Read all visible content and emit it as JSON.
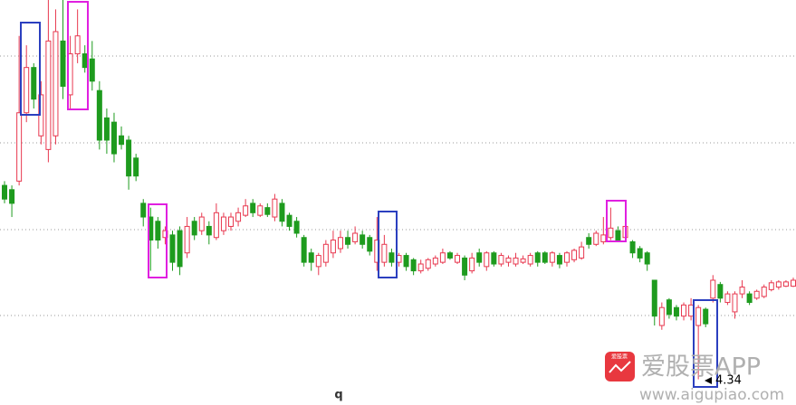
{
  "chart_data": {
    "type": "candlestick",
    "x_label": "q",
    "up_color": "#e8384f",
    "down_color": "#1e9b1e",
    "ylim": [
      4.23,
      8.78
    ],
    "ohlc": [
      [
        6.61,
        6.66,
        6.4,
        6.45
      ],
      [
        6.56,
        6.61,
        6.24,
        6.4
      ],
      [
        6.66,
        8.36,
        6.61,
        7.46
      ],
      [
        7.46,
        8.25,
        7.35,
        7.99
      ],
      [
        7.99,
        8.04,
        7.51,
        7.62
      ],
      [
        7.19,
        7.83,
        7.09,
        7.67
      ],
      [
        7.03,
        8.78,
        6.88,
        8.3
      ],
      [
        7.19,
        8.67,
        7.09,
        8.41
      ],
      [
        8.3,
        8.78,
        7.62,
        7.77
      ],
      [
        7.67,
        8.36,
        7.51,
        8.15
      ],
      [
        8.15,
        8.67,
        8.04,
        8.36
      ],
      [
        8.15,
        8.25,
        7.93,
        7.99
      ],
      [
        8.09,
        8.3,
        7.72,
        7.83
      ],
      [
        7.72,
        7.83,
        7.03,
        7.14
      ],
      [
        7.4,
        7.51,
        6.98,
        7.14
      ],
      [
        7.35,
        7.46,
        6.88,
        6.98
      ],
      [
        7.19,
        7.3,
        7.03,
        7.09
      ],
      [
        7.14,
        7.19,
        6.56,
        6.72
      ],
      [
        6.93,
        6.98,
        6.66,
        6.72
      ],
      [
        6.4,
        6.45,
        6.13,
        6.24
      ],
      [
        6.24,
        6.35,
        5.61,
        5.97
      ],
      [
        6.19,
        6.24,
        5.87,
        5.97
      ],
      [
        6.0,
        6.13,
        5.92,
        6.08
      ],
      [
        6.03,
        6.08,
        5.61,
        5.71
      ],
      [
        6.08,
        6.13,
        5.56,
        5.66
      ],
      [
        5.82,
        6.24,
        5.76,
        6.13
      ],
      [
        6.19,
        6.24,
        5.97,
        6.03
      ],
      [
        6.08,
        6.29,
        6.03,
        6.24
      ],
      [
        6.13,
        6.19,
        5.92,
        6.03
      ],
      [
        6.0,
        6.4,
        5.97,
        6.29
      ],
      [
        6.08,
        6.29,
        6.03,
        6.24
      ],
      [
        6.13,
        6.29,
        6.08,
        6.24
      ],
      [
        6.19,
        6.35,
        6.13,
        6.29
      ],
      [
        6.26,
        6.45,
        6.24,
        6.37
      ],
      [
        6.4,
        6.45,
        6.24,
        6.29
      ],
      [
        6.26,
        6.4,
        6.24,
        6.37
      ],
      [
        6.35,
        6.4,
        6.24,
        6.27
      ],
      [
        6.24,
        6.51,
        6.19,
        6.45
      ],
      [
        6.4,
        6.45,
        6.13,
        6.19
      ],
      [
        6.26,
        6.29,
        6.08,
        6.13
      ],
      [
        6.19,
        6.24,
        6.0,
        6.05
      ],
      [
        6.0,
        6.03,
        5.66,
        5.71
      ],
      [
        5.82,
        5.87,
        5.61,
        5.71
      ],
      [
        5.66,
        5.82,
        5.56,
        5.79
      ],
      [
        5.71,
        5.97,
        5.66,
        5.92
      ],
      [
        5.82,
        6.08,
        5.76,
        5.97
      ],
      [
        5.87,
        6.08,
        5.82,
        6.0
      ],
      [
        6.0,
        6.08,
        5.87,
        5.92
      ],
      [
        5.95,
        6.13,
        5.92,
        6.05
      ],
      [
        6.03,
        6.08,
        5.87,
        5.92
      ],
      [
        6.0,
        6.03,
        5.79,
        5.84
      ],
      [
        5.71,
        6.24,
        5.61,
        5.97
      ],
      [
        5.71,
        6.03,
        5.66,
        5.92
      ],
      [
        5.82,
        5.87,
        5.66,
        5.71
      ],
      [
        5.71,
        5.82,
        5.66,
        5.79
      ],
      [
        5.79,
        5.82,
        5.61,
        5.66
      ],
      [
        5.74,
        5.76,
        5.56,
        5.61
      ],
      [
        5.61,
        5.74,
        5.58,
        5.69
      ],
      [
        5.64,
        5.76,
        5.61,
        5.74
      ],
      [
        5.69,
        5.79,
        5.66,
        5.76
      ],
      [
        5.71,
        5.87,
        5.69,
        5.82
      ],
      [
        5.82,
        5.84,
        5.74,
        5.76
      ],
      [
        5.71,
        5.82,
        5.69,
        5.79
      ],
      [
        5.76,
        5.79,
        5.5,
        5.56
      ],
      [
        5.61,
        5.82,
        5.58,
        5.76
      ],
      [
        5.82,
        5.87,
        5.66,
        5.71
      ],
      [
        5.66,
        5.84,
        5.61,
        5.82
      ],
      [
        5.82,
        5.84,
        5.66,
        5.69
      ],
      [
        5.69,
        5.82,
        5.66,
        5.79
      ],
      [
        5.71,
        5.79,
        5.66,
        5.76
      ],
      [
        5.69,
        5.82,
        5.66,
        5.76
      ],
      [
        5.71,
        5.79,
        5.69,
        5.75
      ],
      [
        5.69,
        5.82,
        5.66,
        5.79
      ],
      [
        5.82,
        5.84,
        5.66,
        5.71
      ],
      [
        5.82,
        5.84,
        5.69,
        5.71
      ],
      [
        5.71,
        5.84,
        5.66,
        5.82
      ],
      [
        5.79,
        5.82,
        5.64,
        5.69
      ],
      [
        5.71,
        5.84,
        5.66,
        5.82
      ],
      [
        5.74,
        5.87,
        5.71,
        5.85
      ],
      [
        5.76,
        5.95,
        5.74,
        5.89
      ],
      [
        6.0,
        6.05,
        5.87,
        5.92
      ],
      [
        5.92,
        6.08,
        5.9,
        6.05
      ],
      [
        5.95,
        6.24,
        5.92,
        6.03
      ],
      [
        6.0,
        6.35,
        5.97,
        6.11
      ],
      [
        6.08,
        6.13,
        5.95,
        5.97
      ],
      [
        6.0,
        6.16,
        5.97,
        6.13
      ],
      [
        5.95,
        5.97,
        5.76,
        5.82
      ],
      [
        5.87,
        5.9,
        5.71,
        5.76
      ],
      [
        5.82,
        5.84,
        5.61,
        5.69
      ],
      [
        5.5,
        5.5,
        4.97,
        5.08
      ],
      [
        4.97,
        5.24,
        4.92,
        5.18
      ],
      [
        5.27,
        5.29,
        5.05,
        5.1
      ],
      [
        5.18,
        5.21,
        5.03,
        5.08
      ],
      [
        5.08,
        5.24,
        5.03,
        5.21
      ],
      [
        5.08,
        5.29,
        5.03,
        5.21
      ],
      [
        4.97,
        5.21,
        4.34,
        5.18
      ],
      [
        5.16,
        5.18,
        4.95,
        4.99
      ],
      [
        5.29,
        5.56,
        5.24,
        5.5
      ],
      [
        5.45,
        5.48,
        5.24,
        5.29
      ],
      [
        5.24,
        5.37,
        5.21,
        5.34
      ],
      [
        5.13,
        5.37,
        5.05,
        5.34
      ],
      [
        5.34,
        5.5,
        5.29,
        5.42
      ],
      [
        5.34,
        5.37,
        5.21,
        5.24
      ],
      [
        5.29,
        5.39,
        5.27,
        5.37
      ],
      [
        5.31,
        5.45,
        5.29,
        5.42
      ],
      [
        5.39,
        5.5,
        5.37,
        5.47
      ],
      [
        5.42,
        5.5,
        5.39,
        5.48
      ],
      [
        5.43,
        5.5,
        5.42,
        5.48
      ],
      [
        5.43,
        5.53,
        5.42,
        5.5
      ]
    ]
  },
  "watermark": {
    "logo_text": "爱股票",
    "name": "爱股票APP",
    "url": "www.aigupiao.com"
  }
}
